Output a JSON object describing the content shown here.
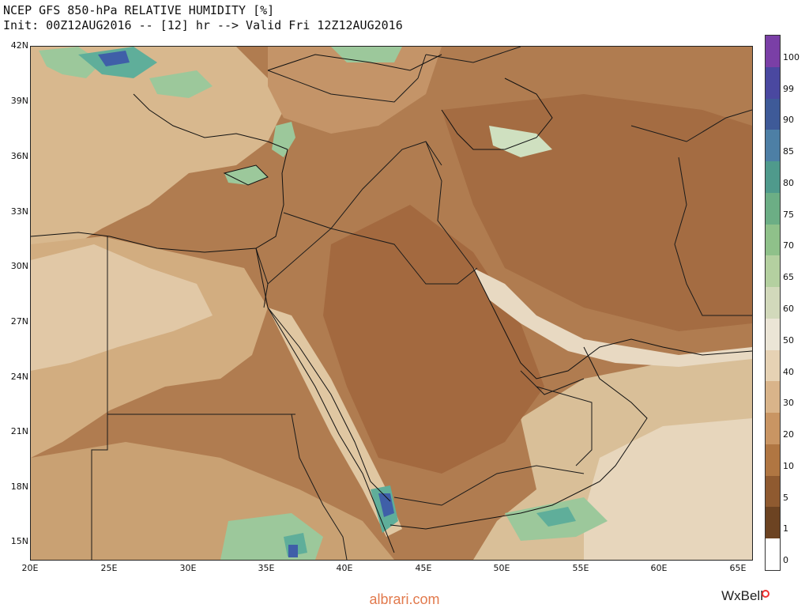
{
  "header": {
    "title": "NCEP GFS 850-hPa RELATIVE HUMIDITY [%]",
    "subtitle": "Init: 00Z12AUG2016 -- [12] hr --> Valid Fri 12Z12AUG2016"
  },
  "map": {
    "lat_labels": [
      "42N",
      "39N",
      "36N",
      "33N",
      "30N",
      "27N",
      "24N",
      "21N",
      "18N",
      "15N"
    ],
    "lon_labels": [
      "20E",
      "25E",
      "30E",
      "35E",
      "40E",
      "45E",
      "50E",
      "55E",
      "60E",
      "65E"
    ],
    "colors": {
      "dry_dark": "#a8714a",
      "dry_mid": "#bb8a5f",
      "moist_light": "#d8b88e",
      "moist_pale": "#e8d9c2",
      "green": "#9cc89b",
      "teal": "#5fae9a",
      "blue": "#3f5fa8",
      "border": "#1a1a1a"
    }
  },
  "colorbar": {
    "levels": [
      "100",
      "99",
      "90",
      "85",
      "80",
      "75",
      "70",
      "65",
      "60",
      "50",
      "40",
      "30",
      "20",
      "10",
      "5",
      "1",
      "0"
    ],
    "colors": [
      "#7a3fa6",
      "#4a48a0",
      "#3e5a98",
      "#4d7fa5",
      "#4f9a8c",
      "#6cae85",
      "#8fc18a",
      "#b4d0a0",
      "#d2d9bb",
      "#ebe5d6",
      "#e6d2b4",
      "#d9b48a",
      "#c99563",
      "#b07642",
      "#8f5a30",
      "#6c4322",
      "#ffffff"
    ]
  },
  "footer": {
    "site": "albrari.com",
    "brand": "WxBell"
  }
}
